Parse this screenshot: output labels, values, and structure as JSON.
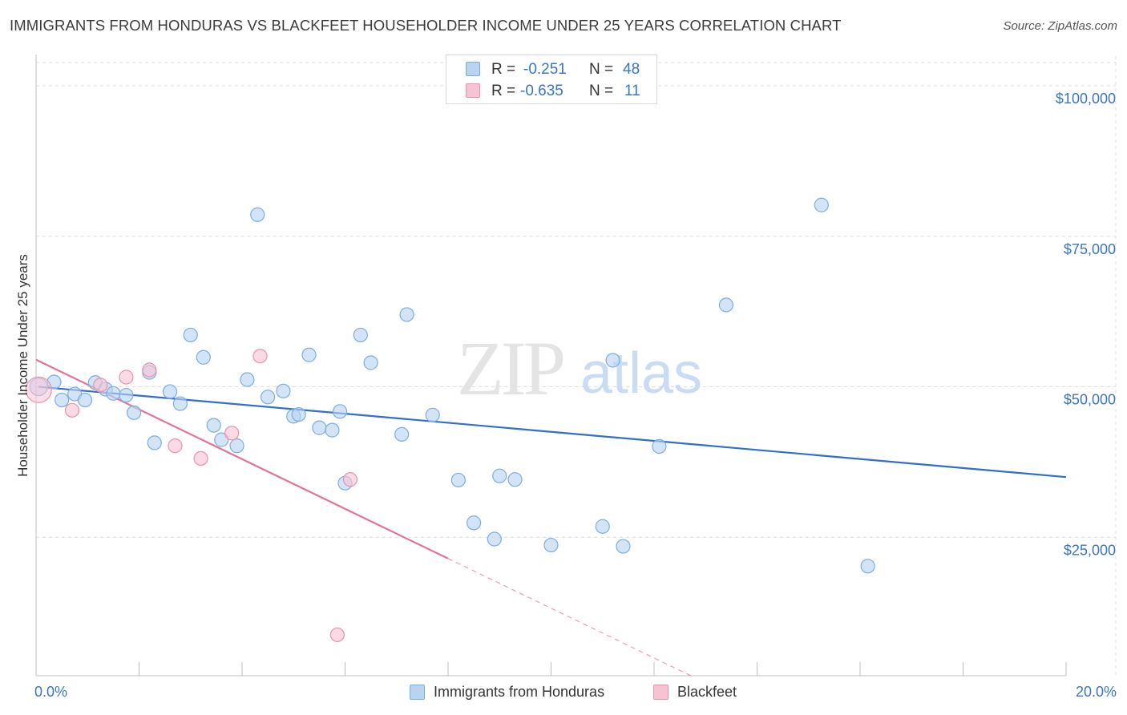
{
  "title": "IMMIGRANTS FROM HONDURAS VS BLACKFEET HOUSEHOLDER INCOME UNDER 25 YEARS CORRELATION CHART",
  "source": "Source: ZipAtlas.com",
  "watermark": {
    "zip": "ZIP",
    "atlas": "atlas"
  },
  "legend": {
    "r_label": "R =",
    "n_label": "N =",
    "rows": [
      {
        "r": "-0.251",
        "n": "48"
      },
      {
        "r": "-0.635",
        "n": "11"
      }
    ]
  },
  "colors": {
    "blue_fill": "#b9d3f2",
    "blue_stroke": "#7aaee0",
    "blue_line": "#2f6fcd",
    "pink_fill": "#f7c3d3",
    "pink_stroke": "#e892ae",
    "pink_line": "#e2739a",
    "tick_text": "#3a76c4",
    "grid": "#dcdcdc"
  },
  "chart_data": {
    "type": "scatter",
    "title": "IMMIGRANTS FROM HONDURAS VS BLACKFEET HOUSEHOLDER INCOME UNDER 25 YEARS CORRELATION CHART",
    "xlabel": "",
    "ylabel": "Householder Income Under 25 years",
    "xlim": [
      0,
      20
    ],
    "ylim": [
      2000,
      106000
    ],
    "x_tick_labels": [
      "0.0%",
      "20.0%"
    ],
    "y_ticks": [
      25000,
      50000,
      75000,
      100000
    ],
    "y_tick_labels": [
      "$25,000",
      "$50,000",
      "$75,000",
      "$100,000"
    ],
    "grid": true,
    "series": [
      {
        "name": "Immigrants from Honduras",
        "color": "blue",
        "points": [
          [
            0.05,
            50000
          ],
          [
            0.35,
            50800
          ],
          [
            0.5,
            47800
          ],
          [
            0.75,
            48800
          ],
          [
            0.95,
            47800
          ],
          [
            1.15,
            50700
          ],
          [
            1.35,
            49600
          ],
          [
            1.5,
            48900
          ],
          [
            1.75,
            48600
          ],
          [
            1.9,
            45700
          ],
          [
            2.2,
            52400
          ],
          [
            2.3,
            40700
          ],
          [
            2.6,
            49200
          ],
          [
            2.8,
            47200
          ],
          [
            3.0,
            58600
          ],
          [
            3.25,
            54900
          ],
          [
            3.45,
            43600
          ],
          [
            3.6,
            41200
          ],
          [
            3.9,
            40200
          ],
          [
            4.1,
            51200
          ],
          [
            4.3,
            78600
          ],
          [
            4.5,
            48300
          ],
          [
            4.8,
            49300
          ],
          [
            5.0,
            45100
          ],
          [
            5.1,
            45400
          ],
          [
            5.3,
            55300
          ],
          [
            5.5,
            43200
          ],
          [
            5.75,
            42800
          ],
          [
            5.9,
            45900
          ],
          [
            6.0,
            34000
          ],
          [
            6.3,
            58600
          ],
          [
            6.5,
            54000
          ],
          [
            7.1,
            42100
          ],
          [
            7.2,
            62000
          ],
          [
            7.7,
            45300
          ],
          [
            8.2,
            34500
          ],
          [
            8.5,
            27400
          ],
          [
            8.9,
            24700
          ],
          [
            9.0,
            35200
          ],
          [
            9.3,
            34600
          ],
          [
            10.0,
            23700
          ],
          [
            11.0,
            26800
          ],
          [
            11.2,
            54400
          ],
          [
            11.4,
            23500
          ],
          [
            12.1,
            40100
          ],
          [
            13.4,
            63600
          ],
          [
            15.25,
            80200
          ],
          [
            16.15,
            20200
          ]
        ],
        "trend": {
          "x0": 0.05,
          "y0": 50000,
          "x1": 20.0,
          "y1": 35000,
          "dashed_from": null
        }
      },
      {
        "name": "Blackfeet",
        "color": "pink",
        "points": [
          [
            0.05,
            49500
          ],
          [
            0.7,
            46100
          ],
          [
            1.25,
            50300
          ],
          [
            1.75,
            51600
          ],
          [
            2.2,
            52800
          ],
          [
            2.7,
            40200
          ],
          [
            3.2,
            38100
          ],
          [
            3.8,
            42300
          ],
          [
            4.35,
            55100
          ],
          [
            6.1,
            34600
          ],
          [
            5.85,
            8800
          ]
        ],
        "trend": {
          "x0": 0.0,
          "y0": 54500,
          "x1": 13.2,
          "y1": 0,
          "solid_until": 8.0
        }
      }
    ]
  },
  "bottom_legend": [
    "Immigrants from Honduras",
    "Blackfeet"
  ]
}
